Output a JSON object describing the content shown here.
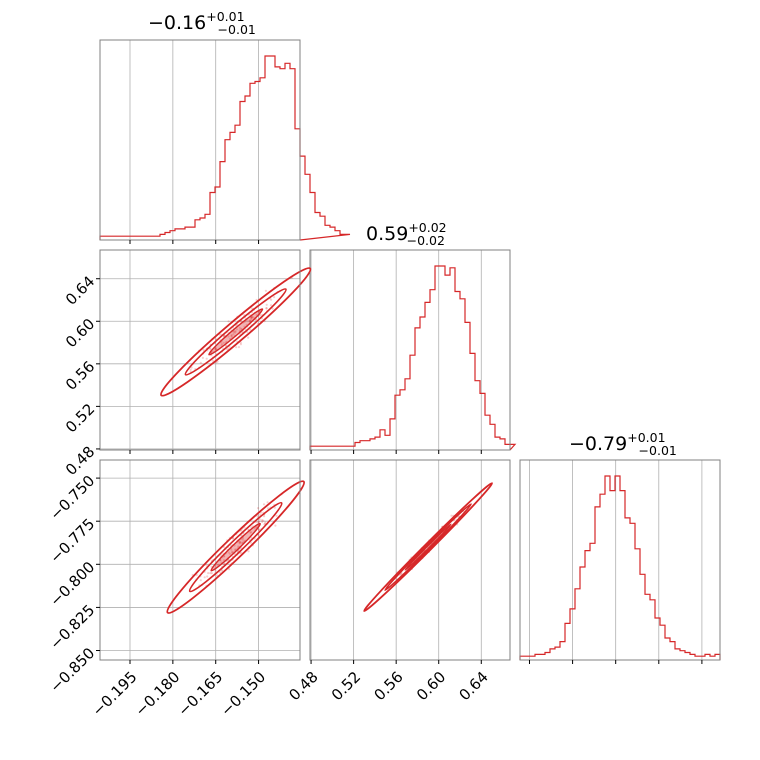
{
  "colors": {
    "accent": "#d62728",
    "grid": "#b0b0b0",
    "frame": "#808080"
  },
  "chart_data": [
    {
      "type": "histogram",
      "panel": "0-0",
      "title": {
        "value": "−0.16",
        "plus": "+0.01",
        "minus": "−0.01"
      },
      "xlim": [
        -0.2055,
        -0.1355
      ],
      "xticks": [
        -0.195,
        -0.18,
        -0.165,
        -0.15
      ],
      "bin_edges_start": -0.2055,
      "bin_width": 0.00175,
      "counts": [
        0.01,
        0.01,
        0.01,
        0.01,
        0.01,
        0.01,
        0.01,
        0.01,
        0.01,
        0.01,
        0.01,
        0.01,
        0.02,
        0.03,
        0.04,
        0.05,
        0.05,
        0.06,
        0.06,
        0.1,
        0.11,
        0.13,
        0.25,
        0.28,
        0.42,
        0.54,
        0.58,
        0.62,
        0.75,
        0.78,
        0.85,
        0.86,
        0.88,
        1.0,
        1.0,
        0.94,
        0.93,
        0.96,
        0.93,
        0.6,
        0.45,
        0.35,
        0.25,
        0.14,
        0.12,
        0.07,
        0.06,
        0.04,
        0.02,
        0.02
      ]
    },
    {
      "type": "histogram",
      "panel": "1-1",
      "title": {
        "value": "0.59",
        "plus": "+0.02",
        "minus": "−0.02"
      },
      "xlim": [
        0.479,
        0.667
      ],
      "xticks": [
        0.48,
        0.52,
        0.56,
        0.6,
        0.64
      ],
      "bin_edges_start": 0.479,
      "bin_width": 0.0047,
      "counts": [
        0.01,
        0.01,
        0.01,
        0.01,
        0.01,
        0.01,
        0.01,
        0.01,
        0.01,
        0.03,
        0.04,
        0.04,
        0.05,
        0.06,
        0.1,
        0.07,
        0.16,
        0.29,
        0.32,
        0.38,
        0.51,
        0.66,
        0.72,
        0.8,
        0.87,
        1.0,
        1.0,
        0.95,
        0.99,
        0.86,
        0.82,
        0.69,
        0.52,
        0.37,
        0.3,
        0.18,
        0.13,
        0.06,
        0.05,
        0.02,
        0.02
      ]
    },
    {
      "type": "histogram",
      "panel": "2-2",
      "title": {
        "value": "−0.79",
        "plus": "+0.01",
        "minus": "−0.01"
      },
      "xlim": [
        -0.8555,
        -0.7395
      ],
      "xticks": [
        -0.85,
        -0.825,
        -0.8,
        -0.775,
        -0.75
      ],
      "bin_edges_start": -0.8555,
      "bin_width": 0.0029,
      "counts": [
        0.01,
        0.01,
        0.01,
        0.02,
        0.02,
        0.03,
        0.05,
        0.06,
        0.09,
        0.19,
        0.27,
        0.38,
        0.5,
        0.59,
        0.63,
        0.83,
        0.9,
        1.0,
        0.92,
        1.0,
        0.92,
        0.77,
        0.74,
        0.6,
        0.46,
        0.35,
        0.32,
        0.22,
        0.18,
        0.11,
        0.09,
        0.05,
        0.04,
        0.03,
        0.02,
        0.01,
        0.01,
        0.02,
        0.01,
        0.02
      ]
    },
    {
      "type": "scatter",
      "panel": "1-0",
      "note": "2D density contours",
      "xlim": [
        -0.2055,
        -0.1355
      ],
      "ylim": [
        0.479,
        0.667
      ],
      "xticks": [
        -0.195,
        -0.18,
        -0.165,
        -0.15
      ],
      "yticks": [
        0.48,
        0.52,
        0.56,
        0.6,
        0.64
      ],
      "center": [
        -0.158,
        0.59
      ],
      "cloud_ends": [
        [
          -0.196,
          0.515
        ],
        [
          -0.137,
          0.65
        ]
      ]
    },
    {
      "type": "scatter",
      "panel": "2-0",
      "note": "2D density contours",
      "xlim": [
        -0.2055,
        -0.1355
      ],
      "ylim": [
        -0.8555,
        -0.7395
      ],
      "xticks": [
        -0.195,
        -0.18,
        -0.165,
        -0.15
      ],
      "yticks": [
        -0.85,
        -0.825,
        -0.8,
        -0.775,
        -0.75
      ],
      "xticklabels": [
        "−0.195",
        "−0.180",
        "−0.165",
        "−0.150"
      ],
      "yticklabels": [
        "−0.850",
        "−0.825",
        "−0.800",
        "−0.775",
        "−0.750"
      ],
      "center": [
        -0.158,
        -0.79
      ],
      "cloud_ends": [
        [
          -0.194,
          -0.836
        ],
        [
          -0.14,
          -0.75
        ]
      ]
    },
    {
      "type": "scatter",
      "panel": "2-1",
      "note": "2D density contours",
      "xlim": [
        0.479,
        0.667
      ],
      "ylim": [
        -0.8555,
        -0.7395
      ],
      "xticks": [
        0.48,
        0.52,
        0.56,
        0.6,
        0.64
      ],
      "xticklabels": [
        "0.48",
        "0.52",
        "0.56",
        "0.60",
        "0.64"
      ],
      "center": [
        0.59,
        -0.79
      ],
      "cloud_ends": [
        [
          0.517,
          -0.835
        ],
        [
          0.653,
          -0.751
        ]
      ]
    }
  ],
  "ylabels_1_0": [
    "0.48",
    "0.52",
    "0.56",
    "0.60",
    "0.64"
  ]
}
